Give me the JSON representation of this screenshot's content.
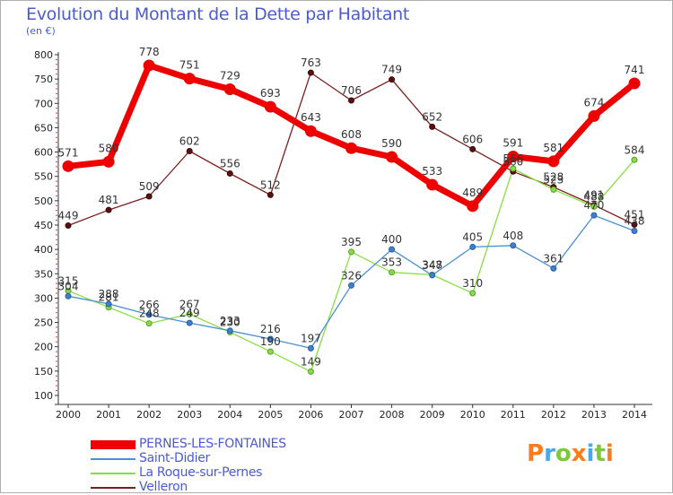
{
  "header": {
    "title": "Evolution du Montant de la Dette par Habitant",
    "unit": "(en €)"
  },
  "chart_data": {
    "type": "line",
    "title": "Evolution du Montant de la Dette par Habitant",
    "ylabel": "(en €)",
    "xlabel": "",
    "x": [
      "2000",
      "2001",
      "2002",
      "2003",
      "2004",
      "2005",
      "2006",
      "2007",
      "2008",
      "2009",
      "2010",
      "2011",
      "2012",
      "2013",
      "2014"
    ],
    "ylim": [
      100,
      800
    ],
    "yticks": [
      100,
      150,
      200,
      250,
      300,
      350,
      400,
      450,
      500,
      550,
      600,
      650,
      700,
      750,
      800
    ],
    "grid": false,
    "legend_position": "bottom-left",
    "series": [
      {
        "name": "PERNES-LES-FONTAINES",
        "color": "#ee0000",
        "values": [
          571,
          580,
          778,
          751,
          729,
          693,
          643,
          608,
          590,
          533,
          489,
          591,
          581,
          674,
          741
        ],
        "labels": [
          "571",
          "580",
          "778",
          "751",
          "729",
          "693",
          "643",
          "608",
          "590",
          "533",
          "489",
          "591",
          "581",
          "674",
          "741"
        ]
      },
      {
        "name": "Saint-Didier",
        "color": "#4a90d0",
        "values": [
          304,
          288,
          266,
          249,
          233,
          216,
          197,
          326,
          400,
          347,
          405,
          408,
          361,
          470,
          438
        ],
        "labels": [
          "304",
          "288",
          "266",
          "249",
          "233",
          "216",
          "197",
          "326",
          "400",
          "347",
          "405",
          "408",
          "361",
          "470",
          "438"
        ]
      },
      {
        "name": "La Roque-sur-Pernes",
        "color": "#88dd44",
        "values": [
          315,
          281,
          248,
          267,
          230,
          190,
          149,
          395,
          353,
          348,
          310,
          566,
          523,
          488,
          584
        ],
        "labels": [
          "315",
          "281",
          "248",
          "267",
          "230",
          "190",
          "149",
          "395",
          "353",
          "348",
          "310",
          "566",
          "523",
          "488",
          "584"
        ]
      },
      {
        "name": "Velleron",
        "color": "#7a1e1e",
        "values": [
          449,
          481,
          509,
          602,
          556,
          512,
          763,
          706,
          749,
          652,
          606,
          560,
          528,
          491,
          451
        ],
        "labels": [
          "449",
          "481",
          "509",
          "602",
          "556",
          "512",
          "763",
          "706",
          "749",
          "652",
          "606",
          "560",
          "528",
          "491",
          "451"
        ]
      }
    ]
  },
  "logo": {
    "letters": [
      "P",
      "r",
      "o",
      "x",
      "i",
      "t",
      "i"
    ],
    "colors": [
      "#ff7b1c",
      "#4aa8e8",
      "#7cc93a",
      "#ff7b1c",
      "#4aa8e8",
      "#7cc93a",
      "#ff7b1c"
    ]
  }
}
